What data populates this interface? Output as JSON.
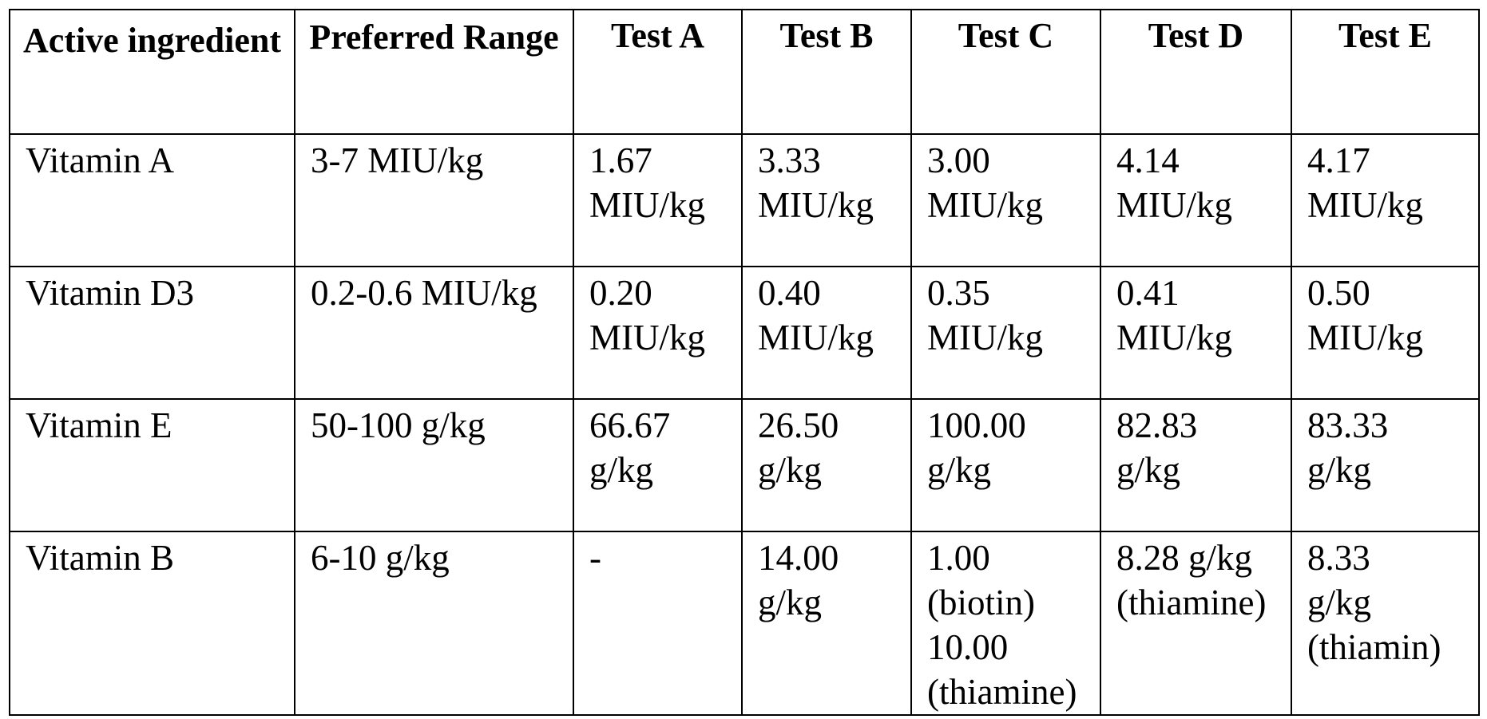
{
  "table": {
    "headers": [
      "Active ingredient",
      "Preferred Range",
      "Test A",
      "Test B",
      "Test C",
      "Test D",
      "Test E"
    ],
    "rows": [
      {
        "ingredient": "Vitamin A",
        "range": "3-7 MIU/kg",
        "tests": [
          "1.67\nMIU/kg",
          "3.33\nMIU/kg",
          "3.00\nMIU/kg",
          "4.14\nMIU/kg",
          "4.17\nMIU/kg"
        ]
      },
      {
        "ingredient": "Vitamin D3",
        "range": "0.2-0.6 MIU/kg",
        "tests": [
          "0.20\nMIU/kg",
          "0.40\nMIU/kg",
          "0.35\nMIU/kg",
          "0.41\nMIU/kg",
          "0.50\nMIU/kg"
        ]
      },
      {
        "ingredient": "Vitamin E",
        "range": "50-100 g/kg",
        "tests": [
          "66.67\ng/kg",
          "26.50\ng/kg",
          "100.00\ng/kg",
          "82.83\ng/kg",
          "83.33\ng/kg"
        ]
      },
      {
        "ingredient": "Vitamin B",
        "range": "6-10 g/kg",
        "tests": [
          "-",
          "14.00\ng/kg",
          "1.00\n(biotin)\n10.00\n(thiamine)",
          "8.28 g/kg\n(thiamine)",
          "8.33\ng/kg\n(thiamin)"
        ]
      }
    ]
  }
}
